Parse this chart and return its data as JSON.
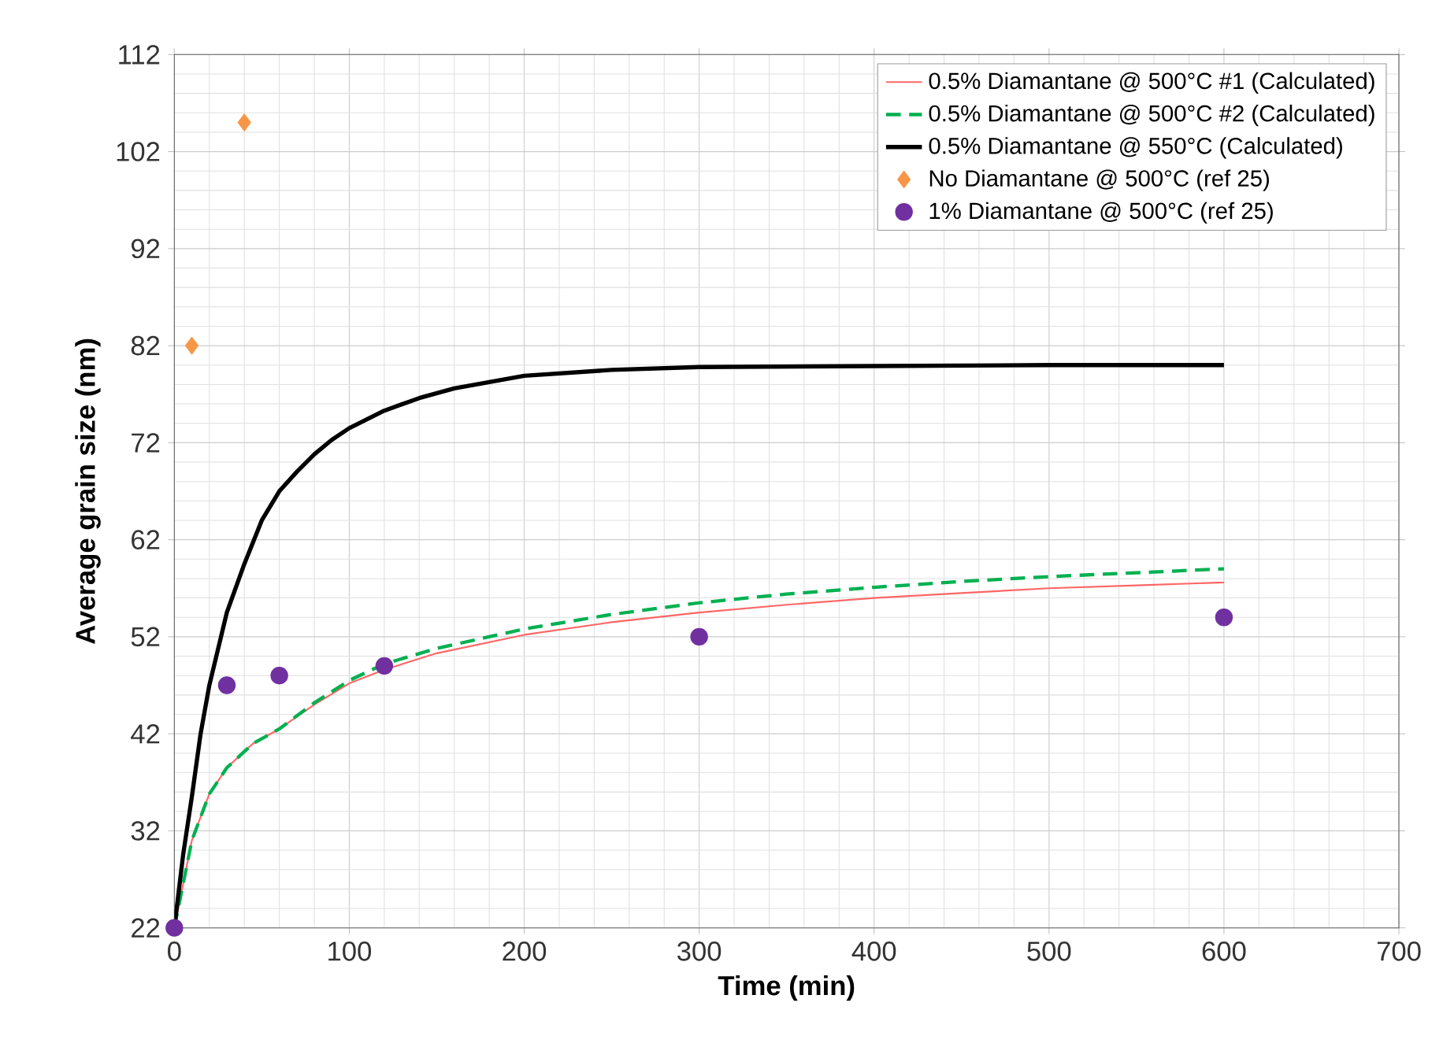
{
  "chart_data": {
    "type": "line",
    "xlabel": "Time (min)",
    "ylabel": "Average grain size (nm)",
    "xlim": [
      0,
      700
    ],
    "xticks": [
      0,
      100,
      200,
      300,
      400,
      500,
      600,
      700
    ],
    "ylim": [
      22,
      112
    ],
    "yticks": [
      22,
      32,
      42,
      52,
      62,
      72,
      82,
      92,
      102,
      112
    ],
    "grid": true,
    "legend": "top right",
    "series": [
      {
        "name": "0.5% Diamantane @ 500°C #1 (Calculated)",
        "color": "#ff6666",
        "line_style": "solid",
        "marker": "none",
        "x": [
          0,
          10,
          20,
          30,
          45,
          60,
          80,
          100,
          120,
          150,
          200,
          250,
          300,
          350,
          400,
          450,
          500,
          550,
          600
        ],
        "values": [
          22,
          31,
          35.8,
          38.5,
          41,
          42.5,
          45,
          47.2,
          48.6,
          50.3,
          52.2,
          53.5,
          54.5,
          55.3,
          56,
          56.5,
          57,
          57.3,
          57.6
        ]
      },
      {
        "name": "0.5% Diamantane @ 500°C #2 (Calculated)",
        "color": "#00b050",
        "line_style": "dashed",
        "marker": "none",
        "x": [
          0,
          10,
          20,
          30,
          45,
          60,
          80,
          100,
          120,
          150,
          200,
          250,
          300,
          350,
          400,
          450,
          500,
          550,
          600
        ],
        "values": [
          22,
          31,
          35.8,
          38.5,
          41,
          42.5,
          45.2,
          47.5,
          49.2,
          50.8,
          52.8,
          54.3,
          55.5,
          56.4,
          57.1,
          57.7,
          58.2,
          58.6,
          59
        ]
      },
      {
        "name": "0.5% Diamantane @ 550°C (Calculated)",
        "color": "#000000",
        "line_style": "solid",
        "marker": "none",
        "x": [
          0,
          5,
          10,
          15,
          20,
          30,
          40,
          50,
          60,
          70,
          80,
          90,
          100,
          120,
          140,
          160,
          200,
          250,
          300,
          400,
          500,
          600
        ],
        "values": [
          22,
          29.5,
          35.5,
          42,
          47,
          54.5,
          59.5,
          64,
          67,
          69,
          70.8,
          72.3,
          73.5,
          75.3,
          76.6,
          77.6,
          78.9,
          79.5,
          79.8,
          79.9,
          80,
          80
        ]
      },
      {
        "name": "No Diamantane @ 500°C (ref 25)",
        "type": "scatter",
        "color": "#f79646",
        "marker": "diamond",
        "x": [
          10,
          40
        ],
        "values": [
          82,
          105
        ]
      },
      {
        "name": "1% Diamantane @ 500°C (ref 25)",
        "type": "scatter",
        "color": "#7030a0",
        "marker": "circle",
        "x": [
          0,
          30,
          60,
          120,
          300,
          600
        ],
        "values": [
          22,
          47,
          48,
          49,
          52,
          54
        ]
      }
    ]
  }
}
